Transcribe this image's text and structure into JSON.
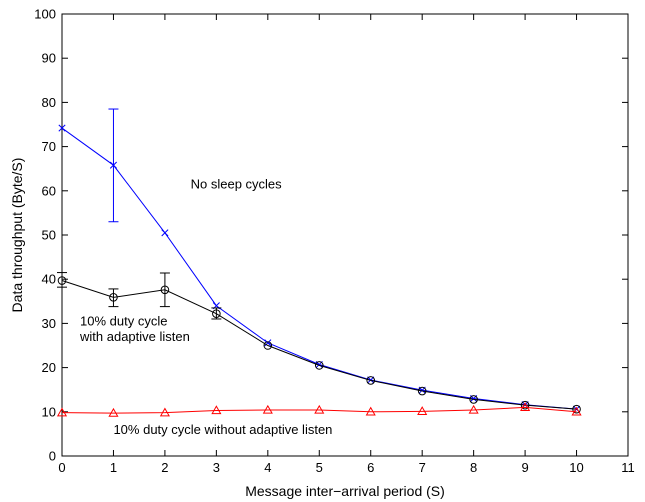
{
  "chart_data": {
    "type": "line",
    "title": "",
    "xlabel": "Message inter−arrival period (S)",
    "ylabel": "Data throughput (Byte/S)",
    "xlim": [
      0,
      11
    ],
    "ylim": [
      0,
      100
    ],
    "xticks": [
      0,
      1,
      2,
      3,
      4,
      5,
      6,
      7,
      8,
      9,
      10,
      11
    ],
    "yticks": [
      0,
      10,
      20,
      30,
      40,
      50,
      60,
      70,
      80,
      90,
      100
    ],
    "grid": false,
    "legend": "none",
    "x": [
      0,
      1,
      2,
      3,
      4,
      5,
      6,
      7,
      8,
      9,
      10
    ],
    "series": [
      {
        "name": "No sleep cycles",
        "color": "#0000ff",
        "marker": "x",
        "values": [
          74.2,
          65.8,
          50.5,
          34.0,
          25.6,
          20.7,
          17.2,
          14.9,
          13.0,
          11.6,
          10.6
        ],
        "error_bars": [
          null,
          [
            53.0,
            78.5
          ],
          null,
          null,
          null,
          null,
          null,
          null,
          null,
          null,
          null
        ]
      },
      {
        "name": "10% duty cycle with adaptive listen",
        "color": "#000000",
        "marker": "circle",
        "values": [
          39.7,
          35.9,
          37.6,
          32.2,
          25.0,
          20.5,
          17.1,
          14.7,
          12.8,
          11.5,
          10.6
        ],
        "error_bars": [
          [
            38.2,
            41.5
          ],
          [
            33.8,
            37.8
          ],
          [
            33.8,
            41.4
          ],
          [
            31.0,
            33.5
          ],
          null,
          null,
          null,
          null,
          null,
          null,
          null
        ]
      },
      {
        "name": "10% duty cycle without adaptive listen",
        "color": "#ff0000",
        "marker": "triangle",
        "values": [
          9.8,
          9.7,
          9.8,
          10.3,
          10.4,
          10.4,
          10.0,
          10.1,
          10.4,
          11.0,
          10.0
        ],
        "error_bars": [
          null,
          null,
          null,
          null,
          null,
          null,
          null,
          null,
          null,
          null,
          null
        ]
      }
    ],
    "annotations": [
      {
        "text": "No sleep cycles",
        "x": 2.5,
        "y": 60.5
      },
      {
        "text": "10% duty cycle",
        "x": 0.35,
        "y": 29.5
      },
      {
        "text": "with adaptive listen",
        "x": 0.35,
        "y": 26.0
      },
      {
        "text": "10% duty cycle without adaptive listen",
        "x": 1.0,
        "y": 5.0
      }
    ]
  }
}
